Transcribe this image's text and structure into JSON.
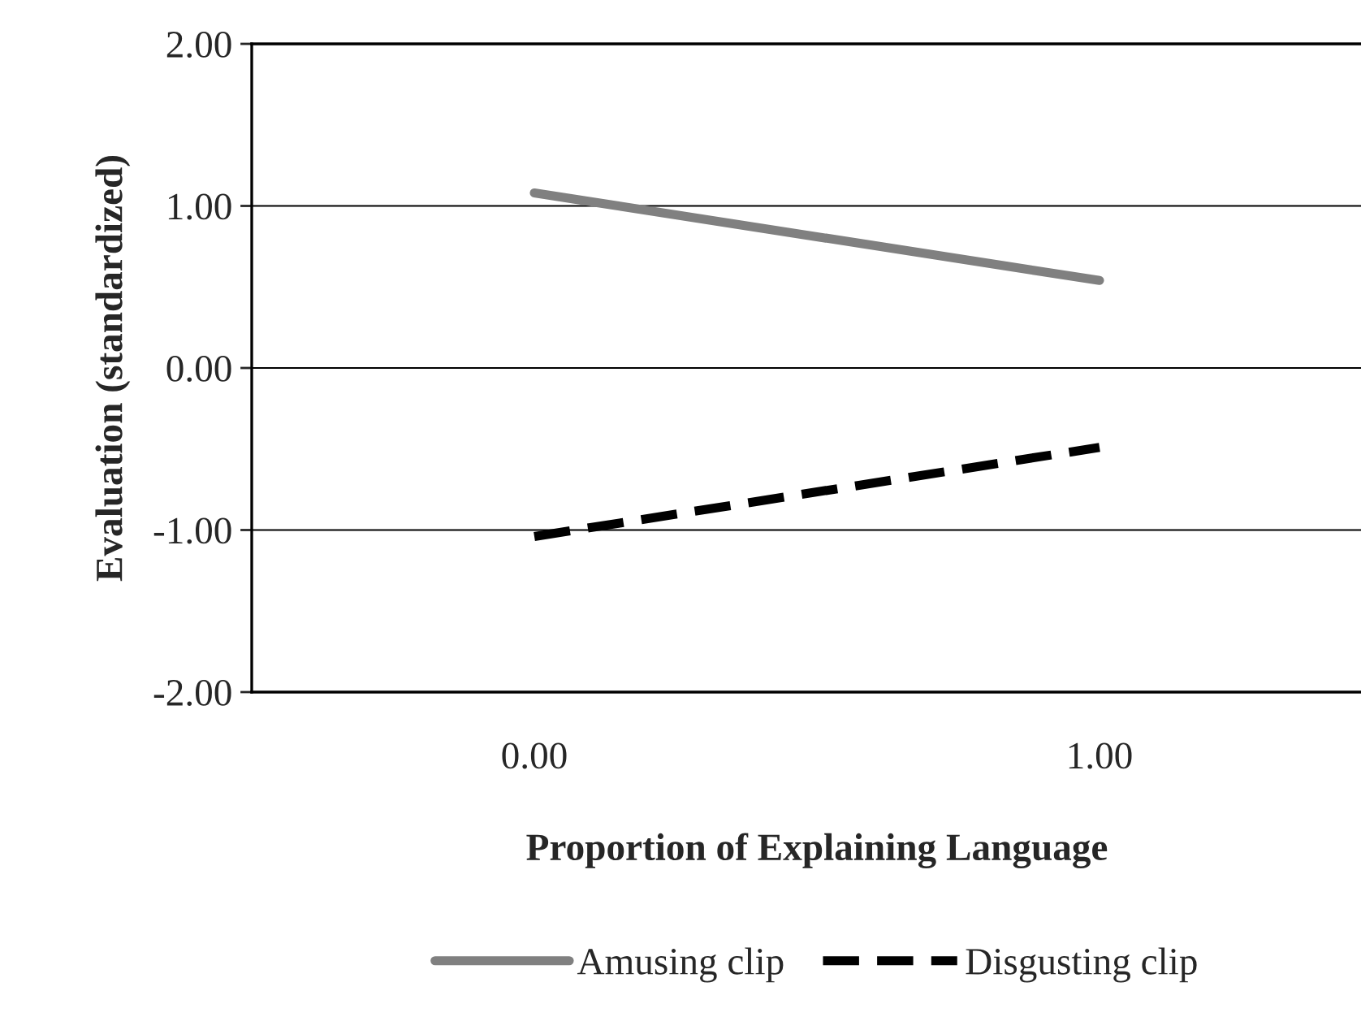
{
  "chart_data": {
    "type": "line",
    "xlabel": "Proportion of Explaining Language",
    "ylabel": "Evaluation (standardized)",
    "categories": [
      "0.00",
      "1.00"
    ],
    "series": [
      {
        "name": "Amusing clip",
        "color": "#808080",
        "values": [
          1.08,
          0.54
        ],
        "line_style": "solid"
      },
      {
        "name": "Disgusting clip",
        "color": "#000000",
        "values": [
          -1.04,
          -0.49
        ],
        "line_style": "dashed"
      }
    ],
    "ylim": [
      -2,
      2
    ],
    "yticks": [
      {
        "value": -2,
        "label": "-2.00"
      },
      {
        "value": -1,
        "label": "-1.00"
      },
      {
        "value": 0,
        "label": "0.00"
      },
      {
        "value": 1,
        "label": "1.00"
      },
      {
        "value": 2,
        "label": "2.00"
      }
    ],
    "grid": "y",
    "legend": "bottom",
    "marker": "none"
  }
}
